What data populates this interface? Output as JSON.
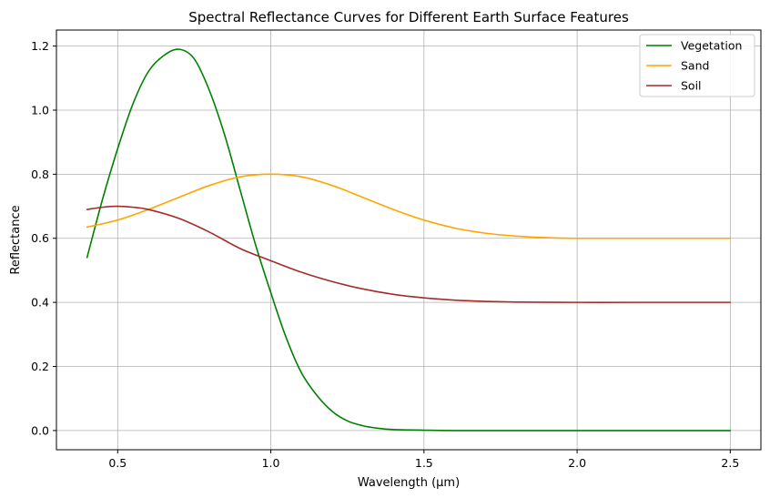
{
  "chart_data": {
    "type": "line",
    "title": "Spectral Reflectance Curves for Different Earth Surface Features",
    "xlabel": "Wavelength (µm)",
    "ylabel": "Reflectance",
    "xlim": [
      0.3,
      2.6
    ],
    "ylim": [
      -0.06,
      1.25
    ],
    "xticks": [
      0.5,
      1.0,
      1.5,
      2.0,
      2.5
    ],
    "xtick_labels": [
      "0.5",
      "1.0",
      "1.5",
      "2.0",
      "2.5"
    ],
    "yticks": [
      0.0,
      0.2,
      0.4,
      0.6,
      0.8,
      1.0,
      1.2
    ],
    "ytick_labels": [
      "0.0",
      "0.2",
      "0.4",
      "0.6",
      "0.8",
      "1.0",
      "1.2"
    ],
    "grid": true,
    "legend_position": "top-right",
    "series": [
      {
        "name": "Vegetation",
        "color": "#008000",
        "x": [
          0.4,
          0.45,
          0.5,
          0.55,
          0.6,
          0.65,
          0.7,
          0.75,
          0.8,
          0.85,
          0.9,
          0.95,
          1.0,
          1.05,
          1.1,
          1.15,
          1.2,
          1.25,
          1.3,
          1.35,
          1.4,
          1.5,
          1.6,
          1.8,
          2.0,
          2.2,
          2.5
        ],
        "y": [
          0.54,
          0.72,
          0.88,
          1.02,
          1.12,
          1.17,
          1.19,
          1.16,
          1.06,
          0.92,
          0.75,
          0.58,
          0.43,
          0.29,
          0.18,
          0.11,
          0.06,
          0.03,
          0.015,
          0.007,
          0.003,
          0.001,
          0.0,
          0.0,
          0.0,
          0.0,
          0.0
        ]
      },
      {
        "name": "Sand",
        "color": "#ffa500",
        "x": [
          0.4,
          0.5,
          0.6,
          0.7,
          0.8,
          0.9,
          1.0,
          1.1,
          1.2,
          1.3,
          1.4,
          1.5,
          1.6,
          1.7,
          1.8,
          1.9,
          2.0,
          2.2,
          2.5
        ],
        "y": [
          0.635,
          0.657,
          0.69,
          0.728,
          0.765,
          0.792,
          0.8,
          0.792,
          0.765,
          0.728,
          0.69,
          0.657,
          0.632,
          0.616,
          0.607,
          0.602,
          0.6,
          0.6,
          0.6
        ]
      },
      {
        "name": "Soil",
        "color": "#a52a2a",
        "x": [
          0.4,
          0.45,
          0.5,
          0.55,
          0.6,
          0.7,
          0.8,
          0.9,
          1.0,
          1.1,
          1.2,
          1.3,
          1.4,
          1.5,
          1.6,
          1.7,
          1.8,
          2.0,
          2.2,
          2.5
        ],
        "y": [
          0.69,
          0.697,
          0.7,
          0.697,
          0.69,
          0.662,
          0.619,
          0.568,
          0.53,
          0.494,
          0.465,
          0.442,
          0.425,
          0.414,
          0.407,
          0.403,
          0.401,
          0.4,
          0.4,
          0.4
        ]
      }
    ]
  }
}
